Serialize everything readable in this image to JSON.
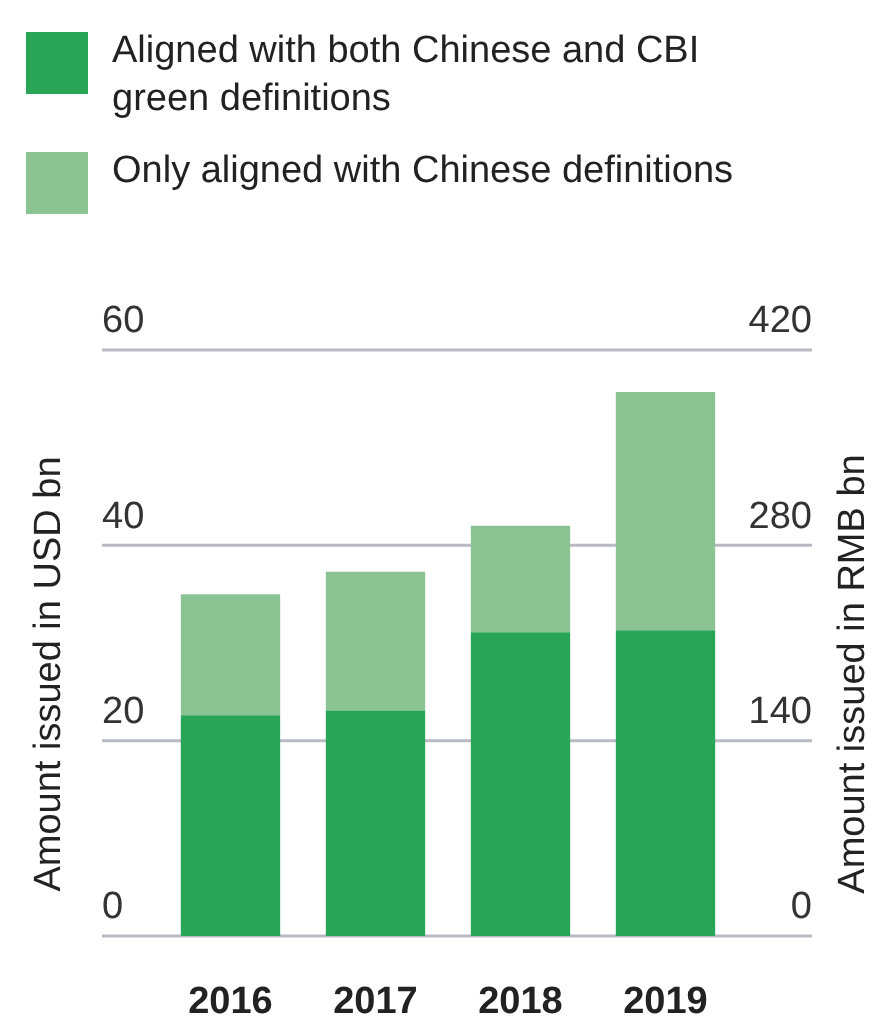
{
  "chart_data": {
    "type": "bar",
    "stacked": true,
    "categories": [
      "2016",
      "2017",
      "2018",
      "2019"
    ],
    "series": [
      {
        "name": "Aligned with both Chinese and CBI green definitions",
        "color": "#28a557",
        "values": [
          22.6,
          23.1,
          31.1,
          31.3
        ]
      },
      {
        "name": "Only aligned with Chinese definitions",
        "color": "#8bc492",
        "values": [
          12.4,
          14.2,
          10.9,
          24.4
        ]
      }
    ],
    "ylabel": "Amount issued in USD bn",
    "y2label": "Amount issued in RMB bn",
    "ylim": [
      0,
      60
    ],
    "yticks": [
      0,
      20,
      40,
      60
    ],
    "y2lim": [
      0,
      420
    ],
    "y2ticks": [
      0,
      140,
      280,
      420
    ],
    "grid": "y",
    "legend": "top left"
  }
}
